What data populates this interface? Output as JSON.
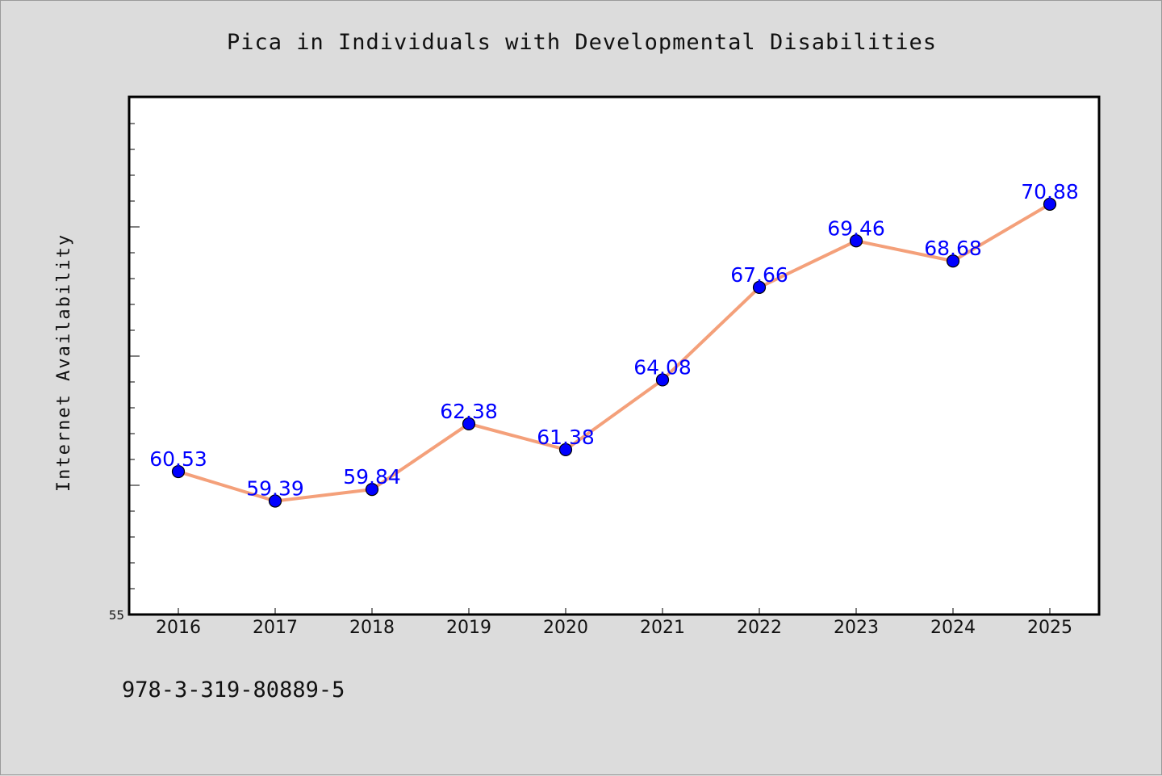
{
  "chart_data": {
    "type": "line",
    "title": "Pica in Individuals with Developmental Disabilities",
    "xlabel": "",
    "ylabel": "Internet Availability",
    "categories": [
      "2016",
      "2017",
      "2018",
      "2019",
      "2020",
      "2021",
      "2022",
      "2023",
      "2024",
      "2025"
    ],
    "series": [
      {
        "values": [
          60.53,
          59.39,
          59.84,
          62.38,
          61.38,
          64.08,
          67.66,
          69.46,
          68.68,
          70.88
        ],
        "labels": [
          "60.53",
          "59.39",
          "59.84",
          "62.38",
          "61.38",
          "64.08",
          "67.66",
          "69.46",
          "68.68",
          "70.88"
        ],
        "line_color": "#f4a07a",
        "marker_color": "#0000ff"
      }
    ],
    "y_tick_labels": [
      "55"
    ],
    "ylim": [
      55,
      75
    ],
    "grid": false,
    "legend": "none"
  },
  "footer_text": "978-3-319-80889-5"
}
